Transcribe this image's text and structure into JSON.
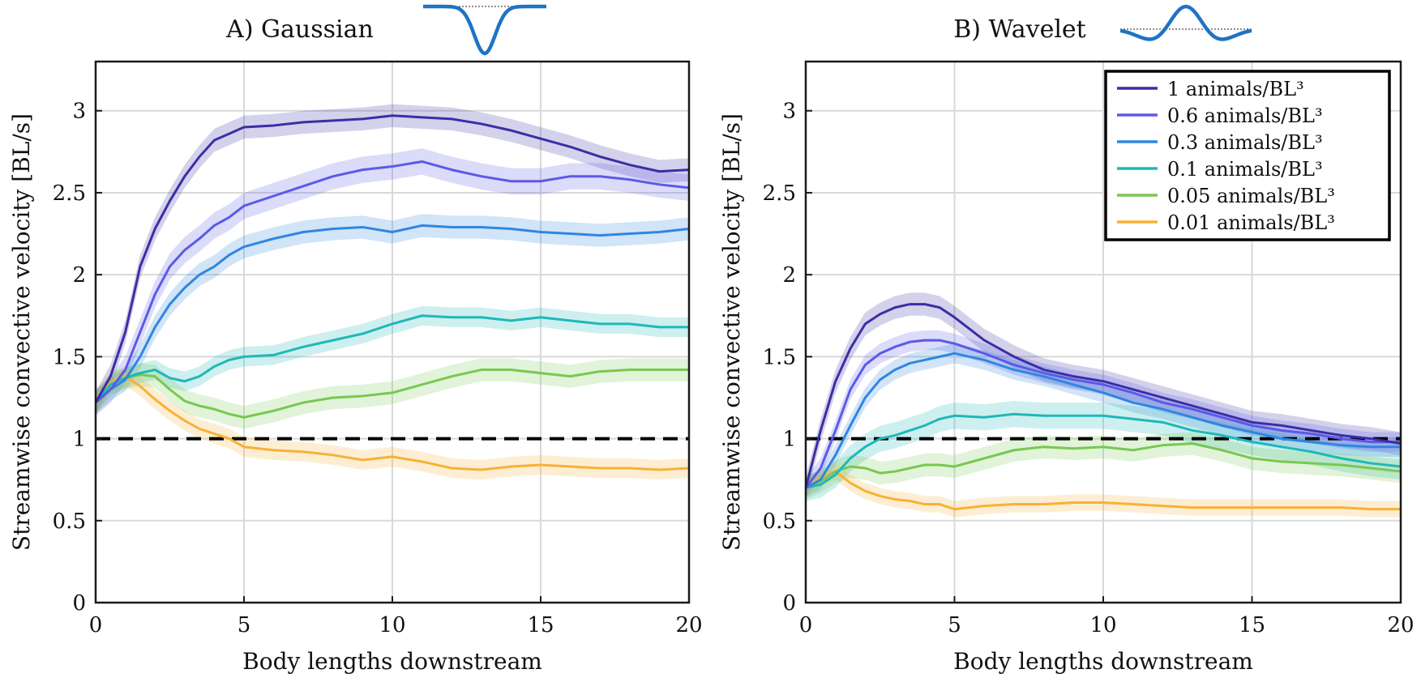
{
  "chart_data": [
    {
      "type": "line",
      "title": "A) Gaussian",
      "inset_icon": "gaussian-dip-icon",
      "xlabel": "Body lengths downstream",
      "ylabel": "Streamwise convective velocity [BL/s]",
      "xlim": [
        0,
        20
      ],
      "ylim": [
        0,
        3.3
      ],
      "xticks": [
        "0",
        "5",
        "10",
        "15",
        "20"
      ],
      "yticks": [
        "0",
        "0.5",
        "1",
        "1.5",
        "2",
        "2.5",
        "3"
      ],
      "grid": true,
      "reference_line": {
        "y": 1,
        "style": "dashed"
      },
      "series": [
        {
          "name": "1 animals/BL³",
          "color": "#3b2ea6",
          "x": [
            0,
            0.5,
            1,
            1.5,
            2,
            2.5,
            3,
            3.5,
            4,
            4.5,
            5,
            6,
            7,
            8,
            9,
            10,
            11,
            12,
            13,
            14,
            15,
            16,
            17,
            18,
            19,
            20
          ],
          "y": [
            1.22,
            1.38,
            1.65,
            2.05,
            2.28,
            2.45,
            2.6,
            2.72,
            2.82,
            2.86,
            2.9,
            2.91,
            2.93,
            2.94,
            2.95,
            2.97,
            2.96,
            2.95,
            2.92,
            2.88,
            2.83,
            2.78,
            2.72,
            2.67,
            2.63,
            2.64
          ],
          "band": 0.07
        },
        {
          "name": "0.6 animals/BL³",
          "color": "#5a5ae6",
          "x": [
            0,
            0.5,
            1,
            1.5,
            2,
            2.5,
            3,
            3.5,
            4,
            4.5,
            5,
            6,
            7,
            8,
            9,
            10,
            11,
            12,
            13,
            14,
            15,
            16,
            17,
            18,
            19,
            20
          ],
          "y": [
            1.22,
            1.3,
            1.42,
            1.65,
            1.88,
            2.05,
            2.15,
            2.22,
            2.3,
            2.35,
            2.42,
            2.48,
            2.54,
            2.6,
            2.64,
            2.66,
            2.69,
            2.64,
            2.6,
            2.57,
            2.57,
            2.6,
            2.6,
            2.58,
            2.55,
            2.53
          ],
          "band": 0.08
        },
        {
          "name": "0.3 animals/BL³",
          "color": "#2f86e0",
          "x": [
            0,
            0.5,
            1,
            1.5,
            2,
            2.5,
            3,
            3.5,
            4,
            4.5,
            5,
            6,
            7,
            8,
            9,
            10,
            11,
            12,
            13,
            14,
            15,
            16,
            17,
            18,
            19,
            20
          ],
          "y": [
            1.22,
            1.3,
            1.36,
            1.5,
            1.68,
            1.82,
            1.92,
            2.0,
            2.05,
            2.12,
            2.17,
            2.22,
            2.26,
            2.28,
            2.29,
            2.26,
            2.3,
            2.29,
            2.29,
            2.28,
            2.26,
            2.25,
            2.24,
            2.25,
            2.26,
            2.28
          ],
          "band": 0.07
        },
        {
          "name": "0.1 animals/BL³",
          "color": "#1fb8b8",
          "x": [
            0,
            0.5,
            1,
            1.5,
            2,
            2.5,
            3,
            3.5,
            4,
            4.5,
            5,
            6,
            7,
            8,
            9,
            10,
            11,
            12,
            13,
            14,
            15,
            16,
            17,
            18,
            19,
            20
          ],
          "y": [
            1.22,
            1.33,
            1.37,
            1.4,
            1.42,
            1.37,
            1.35,
            1.38,
            1.44,
            1.48,
            1.5,
            1.51,
            1.56,
            1.6,
            1.64,
            1.7,
            1.75,
            1.74,
            1.74,
            1.72,
            1.74,
            1.72,
            1.7,
            1.7,
            1.68,
            1.68
          ],
          "band": 0.06
        },
        {
          "name": "0.05 animals/BL³",
          "color": "#78c850",
          "x": [
            0,
            0.5,
            1,
            1.5,
            2,
            2.5,
            3,
            3.5,
            4,
            4.5,
            5,
            6,
            7,
            8,
            9,
            10,
            11,
            12,
            13,
            14,
            15,
            16,
            17,
            18,
            19,
            20
          ],
          "y": [
            1.22,
            1.33,
            1.37,
            1.39,
            1.38,
            1.3,
            1.23,
            1.2,
            1.18,
            1.15,
            1.13,
            1.17,
            1.22,
            1.25,
            1.26,
            1.28,
            1.33,
            1.38,
            1.42,
            1.42,
            1.4,
            1.38,
            1.41,
            1.42,
            1.42,
            1.42
          ],
          "band": 0.07
        },
        {
          "name": "0.01 animals/BL³",
          "color": "#f7b136",
          "x": [
            0,
            0.5,
            1,
            1.5,
            2,
            2.5,
            3,
            3.5,
            4,
            4.5,
            5,
            6,
            7,
            8,
            9,
            10,
            11,
            12,
            13,
            14,
            15,
            16,
            17,
            18,
            19,
            20
          ],
          "y": [
            1.22,
            1.34,
            1.38,
            1.32,
            1.24,
            1.17,
            1.11,
            1.06,
            1.03,
            1.0,
            0.95,
            0.93,
            0.92,
            0.9,
            0.87,
            0.89,
            0.86,
            0.82,
            0.81,
            0.83,
            0.84,
            0.83,
            0.82,
            0.82,
            0.81,
            0.82
          ],
          "band": 0.06
        }
      ]
    },
    {
      "type": "line",
      "title": "B) Wavelet",
      "inset_icon": "wavelet-icon",
      "xlabel": "Body lengths downstream",
      "ylabel": "Streamwise convective velocity [BL/s]",
      "xlim": [
        0,
        20
      ],
      "ylim": [
        0,
        3.3
      ],
      "xticks": [
        "0",
        "5",
        "10",
        "15",
        "20"
      ],
      "yticks": [
        "0",
        "0.5",
        "1",
        "1.5",
        "2",
        "2.5",
        "3"
      ],
      "grid": true,
      "reference_line": {
        "y": 1,
        "style": "dashed"
      },
      "legend_position": "top-right",
      "series": [
        {
          "name": "1 animals/BL³",
          "color": "#3b2ea6",
          "x": [
            0,
            0.5,
            1,
            1.5,
            2,
            2.5,
            3,
            3.5,
            4,
            4.5,
            5,
            6,
            7,
            8,
            9,
            10,
            11,
            12,
            13,
            14,
            15,
            16,
            17,
            18,
            19,
            20
          ],
          "y": [
            0.7,
            1.05,
            1.35,
            1.55,
            1.7,
            1.76,
            1.8,
            1.82,
            1.82,
            1.8,
            1.74,
            1.6,
            1.5,
            1.42,
            1.38,
            1.35,
            1.3,
            1.25,
            1.2,
            1.15,
            1.1,
            1.08,
            1.05,
            1.02,
            1.0,
            0.97
          ],
          "band": 0.07
        },
        {
          "name": "0.6 animals/BL³",
          "color": "#5a5ae6",
          "x": [
            0,
            0.5,
            1,
            1.5,
            2,
            2.5,
            3,
            3.5,
            4,
            4.5,
            5,
            6,
            7,
            8,
            9,
            10,
            11,
            12,
            13,
            14,
            15,
            16,
            17,
            18,
            19,
            20
          ],
          "y": [
            0.7,
            0.82,
            1.05,
            1.3,
            1.45,
            1.52,
            1.56,
            1.59,
            1.6,
            1.6,
            1.58,
            1.52,
            1.45,
            1.4,
            1.36,
            1.33,
            1.28,
            1.22,
            1.18,
            1.13,
            1.08,
            1.05,
            1.03,
            1.0,
            0.98,
            0.98
          ],
          "band": 0.06
        },
        {
          "name": "0.3 animals/BL³",
          "color": "#2f86e0",
          "x": [
            0,
            0.5,
            1,
            1.5,
            2,
            2.5,
            3,
            3.5,
            4,
            4.5,
            5,
            6,
            7,
            8,
            9,
            10,
            11,
            12,
            13,
            14,
            15,
            16,
            17,
            18,
            19,
            20
          ],
          "y": [
            0.7,
            0.75,
            0.9,
            1.08,
            1.25,
            1.36,
            1.42,
            1.46,
            1.48,
            1.5,
            1.52,
            1.48,
            1.42,
            1.38,
            1.33,
            1.28,
            1.22,
            1.18,
            1.13,
            1.08,
            1.04,
            1.0,
            0.98,
            0.96,
            0.95,
            0.95
          ],
          "band": 0.06
        },
        {
          "name": "0.1 animals/BL³",
          "color": "#1fb8b8",
          "x": [
            0,
            0.5,
            1,
            1.5,
            2,
            2.5,
            3,
            3.5,
            4,
            4.5,
            5,
            6,
            7,
            8,
            9,
            10,
            11,
            12,
            13,
            14,
            15,
            16,
            17,
            18,
            19,
            20
          ],
          "y": [
            0.7,
            0.72,
            0.78,
            0.88,
            0.95,
            1.0,
            1.02,
            1.05,
            1.08,
            1.12,
            1.14,
            1.13,
            1.15,
            1.14,
            1.14,
            1.14,
            1.12,
            1.1,
            1.05,
            1.02,
            0.98,
            0.95,
            0.92,
            0.88,
            0.85,
            0.83
          ],
          "band": 0.08
        },
        {
          "name": "0.05 animals/BL³",
          "color": "#78c850",
          "x": [
            0,
            0.5,
            1,
            1.5,
            2,
            2.5,
            3,
            3.5,
            4,
            4.5,
            5,
            6,
            7,
            8,
            9,
            10,
            11,
            12,
            13,
            14,
            15,
            16,
            17,
            18,
            19,
            20
          ],
          "y": [
            0.7,
            0.74,
            0.8,
            0.83,
            0.82,
            0.79,
            0.8,
            0.82,
            0.84,
            0.84,
            0.83,
            0.88,
            0.93,
            0.95,
            0.94,
            0.95,
            0.93,
            0.96,
            0.97,
            0.93,
            0.88,
            0.86,
            0.85,
            0.84,
            0.82,
            0.8
          ],
          "band": 0.07
        },
        {
          "name": "0.01 animals/BL³",
          "color": "#f7b136",
          "x": [
            0,
            0.5,
            1,
            1.5,
            2,
            2.5,
            3,
            3.5,
            4,
            4.5,
            5,
            6,
            7,
            8,
            9,
            10,
            11,
            12,
            13,
            14,
            15,
            16,
            17,
            18,
            19,
            20
          ],
          "y": [
            0.7,
            0.76,
            0.8,
            0.73,
            0.68,
            0.65,
            0.63,
            0.62,
            0.6,
            0.6,
            0.57,
            0.59,
            0.6,
            0.6,
            0.61,
            0.61,
            0.6,
            0.59,
            0.58,
            0.58,
            0.58,
            0.58,
            0.58,
            0.58,
            0.57,
            0.57
          ],
          "band": 0.05
        }
      ]
    }
  ]
}
